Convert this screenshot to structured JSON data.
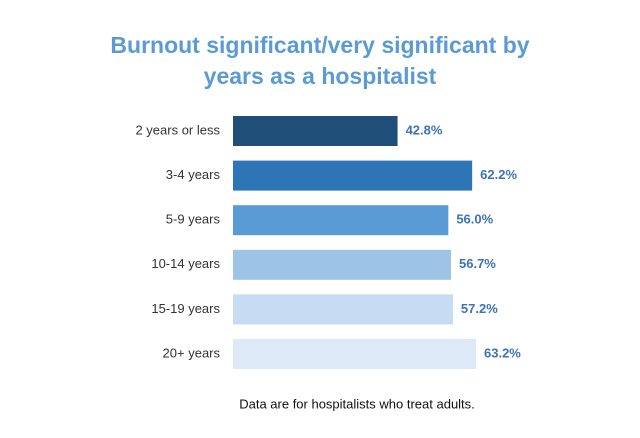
{
  "chart_data": {
    "type": "bar",
    "orientation": "horizontal",
    "title": "Burnout significant/very significant by years as a hospitalist",
    "categories": [
      "2 years or less",
      "3-4 years",
      "5-9 years",
      "10-14 years",
      "15-19 years",
      "20+ years"
    ],
    "values": [
      42.8,
      62.2,
      56.0,
      56.7,
      57.2,
      63.2
    ],
    "value_labels": [
      "42.8%",
      "62.2%",
      "56.0%",
      "56.7%",
      "57.2%",
      "63.2%"
    ],
    "colors": [
      "#1f4e79",
      "#2e75b6",
      "#5b9bd5",
      "#9dc3e6",
      "#c5dcf2",
      "#dde9f6"
    ],
    "label_color": "#3d72b8",
    "note": "Data are for hospitalists who treat adults."
  }
}
